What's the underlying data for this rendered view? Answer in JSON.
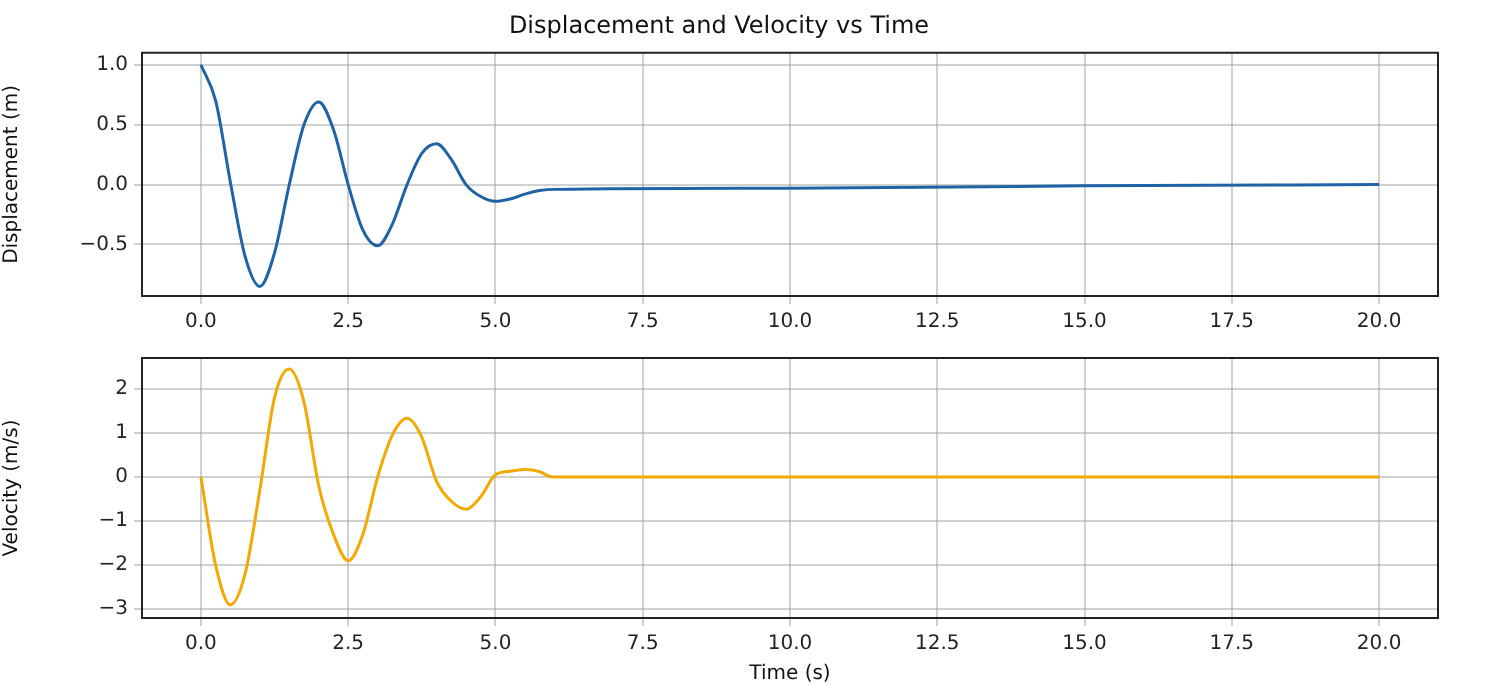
{
  "chart_data": [
    {
      "type": "line",
      "title": "Displacement and Velocity vs Time",
      "ylabel": "Displacement (m)",
      "grid": true,
      "marker": "none",
      "line_style": "solid",
      "xlim": [
        -1,
        21
      ],
      "ylim": [
        -0.93,
        1.1
      ],
      "xticks": [
        {
          "value": 0,
          "label": "0.0"
        },
        {
          "value": 2.5,
          "label": "2.5"
        },
        {
          "value": 5,
          "label": "5.0"
        },
        {
          "value": 7.5,
          "label": "7.5"
        },
        {
          "value": 10,
          "label": "10.0"
        },
        {
          "value": 12.5,
          "label": "12.5"
        },
        {
          "value": 15,
          "label": "15.0"
        },
        {
          "value": 17.5,
          "label": "17.5"
        },
        {
          "value": 20,
          "label": "20.0"
        }
      ],
      "yticks": [
        {
          "value": -0.5,
          "label": "−0.5"
        },
        {
          "value": 0,
          "label": "0.0"
        },
        {
          "value": 0.5,
          "label": "0.5"
        },
        {
          "value": 1,
          "label": "1.0"
        }
      ],
      "x": [
        0,
        0.25,
        0.5,
        0.75,
        1,
        1.25,
        1.5,
        1.75,
        2,
        2.25,
        2.5,
        2.75,
        3,
        3.25,
        3.5,
        3.75,
        4,
        4.25,
        4.5,
        4.75,
        5,
        5.25,
        5.5,
        5.75,
        6,
        10,
        15,
        20
      ],
      "series": [
        {
          "color": "#1f63a6",
          "values": [
            1.0,
            0.7,
            0.02,
            -0.6,
            -0.85,
            -0.57,
            0.0,
            0.5,
            0.69,
            0.46,
            0.0,
            -0.38,
            -0.51,
            -0.33,
            0.0,
            0.26,
            0.34,
            0.21,
            0.0,
            -0.1,
            -0.14,
            -0.12,
            -0.08,
            -0.05,
            -0.04,
            -0.03,
            -0.01,
            0.0
          ]
        }
      ]
    },
    {
      "type": "line",
      "xlabel": "Time (s)",
      "ylabel": "Velocity (m/s)",
      "grid": true,
      "marker": "none",
      "line_style": "solid",
      "xlim": [
        -1,
        21
      ],
      "ylim": [
        -3.2,
        2.7
      ],
      "xticks": [
        {
          "value": 0,
          "label": "0.0"
        },
        {
          "value": 2.5,
          "label": "2.5"
        },
        {
          "value": 5,
          "label": "5.0"
        },
        {
          "value": 7.5,
          "label": "7.5"
        },
        {
          "value": 10,
          "label": "10.0"
        },
        {
          "value": 12.5,
          "label": "12.5"
        },
        {
          "value": 15,
          "label": "15.0"
        },
        {
          "value": 17.5,
          "label": "17.5"
        },
        {
          "value": 20,
          "label": "20.0"
        }
      ],
      "yticks": [
        {
          "value": -3,
          "label": "−3"
        },
        {
          "value": -2,
          "label": "−2"
        },
        {
          "value": -1,
          "label": "−1"
        },
        {
          "value": 0,
          "label": "0"
        },
        {
          "value": 1,
          "label": "1"
        },
        {
          "value": 2,
          "label": "2"
        }
      ],
      "x": [
        0,
        0.25,
        0.5,
        0.75,
        1,
        1.25,
        1.5,
        1.75,
        2,
        2.25,
        2.5,
        2.75,
        3,
        3.25,
        3.5,
        3.75,
        4,
        4.25,
        4.5,
        4.75,
        5,
        5.25,
        5.5,
        5.75,
        5.9,
        6,
        20
      ],
      "series": [
        {
          "color": "#f2a900",
          "values": [
            0,
            -2.0,
            -2.9,
            -2.2,
            -0.3,
            1.8,
            2.45,
            1.7,
            -0.2,
            -1.3,
            -1.9,
            -1.3,
            0.0,
            0.95,
            1.33,
            0.9,
            -0.1,
            -0.55,
            -0.73,
            -0.45,
            0.05,
            0.13,
            0.17,
            0.12,
            0.02,
            0.0,
            0.0
          ]
        }
      ]
    }
  ]
}
